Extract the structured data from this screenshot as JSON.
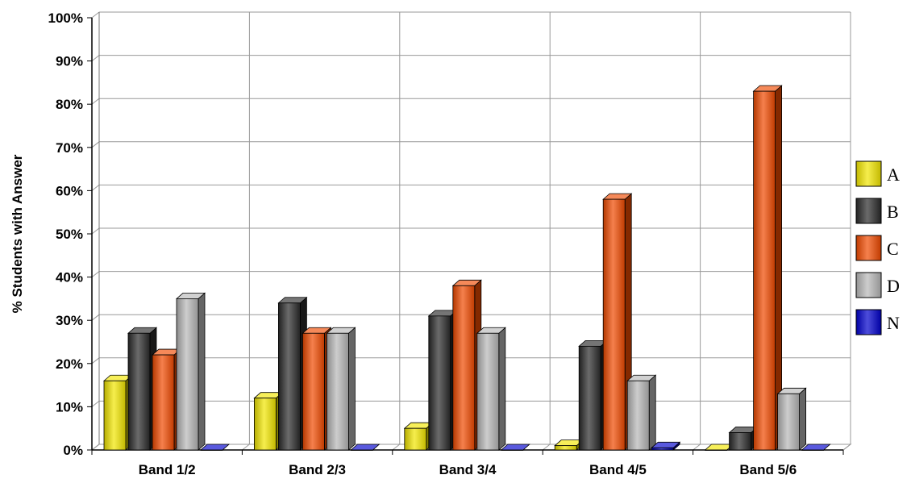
{
  "chart_data": {
    "type": "bar",
    "ylabel": "% Students with Answer",
    "xlabel": "",
    "title": "",
    "ylim": [
      0,
      100
    ],
    "yticks": [
      "0%",
      "10%",
      "20%",
      "30%",
      "40%",
      "50%",
      "60%",
      "70%",
      "80%",
      "90%",
      "100%"
    ],
    "categories": [
      "Band 1/2",
      "Band 2/3",
      "Band 3/4",
      "Band 4/5",
      "Band 5/6"
    ],
    "series": [
      {
        "name": "A",
        "color": "#f2e600",
        "values": [
          16,
          12,
          5,
          1,
          0
        ]
      },
      {
        "name": "B",
        "color": "#2b2b2b",
        "values": [
          27,
          34,
          31,
          24,
          4
        ]
      },
      {
        "name": "C",
        "color": "#f04a00",
        "values": [
          22,
          27,
          38,
          58,
          83
        ]
      },
      {
        "name": "D",
        "color": "#b8b8b8",
        "values": [
          35,
          27,
          27,
          16,
          13
        ]
      },
      {
        "name": "N",
        "color": "#0000cc",
        "values": [
          0,
          0,
          0,
          0.5,
          0
        ]
      }
    ],
    "grid": true,
    "legend_position": "right",
    "style": "3d-bars"
  }
}
